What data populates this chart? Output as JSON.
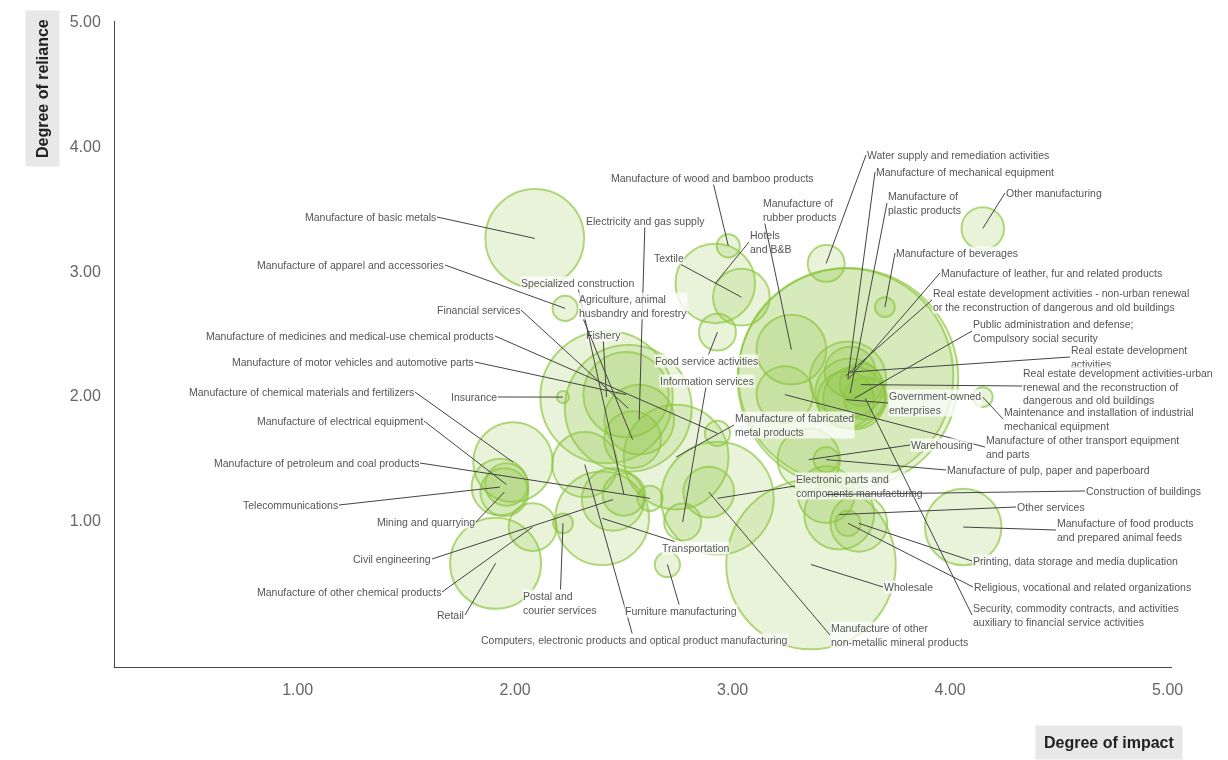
{
  "chart_data": {
    "type": "bubble",
    "xlabel": "Degree of impact",
    "ylabel": "Degree of reliance",
    "xlim": [
      0.16,
      5.02
    ],
    "ylim": [
      -0.17,
      5.0
    ],
    "xticks": [
      {
        "value": 1,
        "label": "1.00"
      },
      {
        "value": 2,
        "label": "2.00"
      },
      {
        "value": 3,
        "label": "3.00"
      },
      {
        "value": 4,
        "label": "4.00"
      },
      {
        "value": 5,
        "label": "5.00"
      }
    ],
    "yticks": [
      {
        "value": 1,
        "label": "1.00"
      },
      {
        "value": 2,
        "label": "2.00"
      },
      {
        "value": 3,
        "label": "3.00"
      },
      {
        "value": 4,
        "label": "4.00"
      },
      {
        "value": 5,
        "label": "5.00"
      }
    ],
    "color": "#8cc63f",
    "x": [
      2.09,
      2.23,
      2.52,
      2.93,
      2.51,
      1.99,
      2.22,
      1.96,
      2.62,
      1.93,
      1.95,
      2.45,
      2.08,
      1.91,
      2.22,
      2.32,
      2.7,
      2.4,
      2.42,
      2.5,
      2.57,
      2.54,
      2.98,
      3.04,
      2.92,
      2.93,
      2.77,
      2.74,
      2.93,
      2.89,
      3.27,
      3.43,
      3.53,
      3.54,
      4.15,
      3.7,
      3.53,
      3.52,
      3.56,
      3.54,
      3.59,
      3.52,
      4.15,
      3.24,
      3.35,
      3.43,
      3.43,
      3.49,
      4.06,
      3.58,
      3.53,
      3.36,
      3.61
    ],
    "values": [
      3.26,
      2.7,
      1.9,
      1.7,
      2.01,
      1.47,
      1.99,
      1.29,
      1.18,
      1.27,
      1.23,
      1.17,
      0.95,
      0.66,
      0.98,
      1.45,
      0.65,
      1.02,
      1.99,
      1.21,
      1.81,
      1.65,
      3.2,
      2.79,
      2.9,
      2.51,
      0.99,
      1.51,
      1.18,
      1.23,
      2.37,
      3.06,
      2.14,
      2.02,
      3.34,
      2.71,
      2.13,
      2.16,
      1.98,
      2.19,
      2.09,
      1.97,
      1.99,
      2.01,
      1.49,
      1.49,
      1.21,
      1.05,
      0.95,
      0.98,
      0.98,
      0.65,
      1.98
    ],
    "sizes": [
      0.2,
      0.013,
      0.33,
      0.013,
      0.15,
      0.13,
      0.003,
      0.037,
      0.013,
      0.066,
      0.047,
      0.08,
      0.047,
      0.17,
      0.008,
      0.087,
      0.013,
      0.18,
      0.36,
      0.037,
      0.1,
      0.066,
      0.011,
      0.066,
      0.13,
      0.028,
      0.028,
      0.225,
      0.26,
      0.053,
      0.1,
      0.028,
      1,
      0.1,
      0.037,
      0.008,
      0.12,
      0.95,
      0.08,
      0.053,
      0.037,
      0.066,
      0.008,
      0.066,
      0.08,
      0.013,
      0.066,
      0.1,
      0.12,
      0.066,
      0.013,
      0.59,
      0.037
    ],
    "annotations": [
      {
        "text": "Manufacture of basic metals",
        "x": 2.09,
        "y": 3.26
      },
      {
        "text": "Manufacture of apparel and accessories",
        "x": 2.23,
        "y": 2.7
      },
      {
        "text": "Financial services",
        "x": 2.52,
        "y": 1.9
      },
      {
        "text": "Manufacture of medicines and medical-use chemical products",
        "x": 2.93,
        "y": 1.7
      },
      {
        "text": "Manufacture of motor vehicles and automotive parts",
        "x": 2.51,
        "y": 2.01
      },
      {
        "text": "Manufacture of chemical materials and fertilizers",
        "x": 1.99,
        "y": 1.47
      },
      {
        "text": "Insurance",
        "x": 2.22,
        "y": 1.99
      },
      {
        "text": "Manufacture of electrical equipment",
        "x": 1.96,
        "y": 1.29
      },
      {
        "text": "Manufacture of petroleum and coal products",
        "x": 2.62,
        "y": 1.18
      },
      {
        "text": "Telecommunications",
        "x": 1.93,
        "y": 1.27
      },
      {
        "text": "Mining and quarrying",
        "x": 1.95,
        "y": 1.23
      },
      {
        "text": "Civil engineering",
        "x": 2.45,
        "y": 1.17
      },
      {
        "text": "Manufacture of other chemical products",
        "x": 2.08,
        "y": 0.95
      },
      {
        "text": "Retail",
        "x": 1.91,
        "y": 0.66
      },
      {
        "text": "Postal and courier services",
        "x": 2.22,
        "y": 0.98
      },
      {
        "text": "Computers, electronic products and optical product manufacturing",
        "x": 2.32,
        "y": 1.45
      },
      {
        "text": "Furniture manufacturing",
        "x": 2.7,
        "y": 0.65
      },
      {
        "text": "Transportation",
        "x": 2.4,
        "y": 1.02
      },
      {
        "text": "Fishery",
        "x": 2.42,
        "y": 1.99
      },
      {
        "text": "Specialized construction",
        "x": 2.5,
        "y": 1.21
      },
      {
        "text": "Electricity and gas supply",
        "x": 2.57,
        "y": 1.81
      },
      {
        "text": "Agriculture, animal husbandry and forestry",
        "x": 2.54,
        "y": 1.65
      },
      {
        "text": "Manufacture of wood and bamboo products",
        "x": 2.98,
        "y": 3.2
      },
      {
        "text": "Textile",
        "x": 3.04,
        "y": 2.79
      },
      {
        "text": "Hotels and B&B",
        "x": 2.92,
        "y": 2.9
      },
      {
        "text": "Food service activities",
        "x": 2.93,
        "y": 2.51
      },
      {
        "text": "Information services",
        "x": 2.77,
        "y": 0.99
      },
      {
        "text": "Manufacture of fabricated metal products",
        "x": 2.74,
        "y": 1.51
      },
      {
        "text": "Electronic parts and components manufacturing",
        "x": 2.93,
        "y": 1.18
      },
      {
        "text": "Manufacture of other non-metallic mineral products",
        "x": 2.89,
        "y": 1.23
      },
      {
        "text": "Manufacture of rubber products",
        "x": 3.27,
        "y": 2.37
      },
      {
        "text": "Water supply and remediation activities",
        "x": 3.43,
        "y": 3.06
      },
      {
        "text": "Manufacture of mechanical equipment",
        "x": 3.53,
        "y": 2.14
      },
      {
        "text": "Manufacture of plastic products",
        "x": 3.54,
        "y": 2.02
      },
      {
        "text": "Other manufacturing",
        "x": 4.15,
        "y": 3.34
      },
      {
        "text": "Manufacture of beverages",
        "x": 3.7,
        "y": 2.71
      },
      {
        "text": "Manufacture of leather, fur and related products",
        "x": 3.53,
        "y": 2.13
      },
      {
        "text": "Real estate development activities - non-urban renewal or the reconstruction of dangerous and old buildings",
        "x": 3.52,
        "y": 2.16
      },
      {
        "text": "Public administration and defense; Compulsory social security",
        "x": 3.56,
        "y": 1.98
      },
      {
        "text": "Real estate development activities",
        "x": 3.54,
        "y": 2.19
      },
      {
        "text": "Real estate development activities-urban renewal and the reconstruction of dangerous and old buildings",
        "x": 3.59,
        "y": 2.09
      },
      {
        "text": "Government-owned enterprises",
        "x": 3.52,
        "y": 1.97
      },
      {
        "text": "Maintenance and installation of industrial mechanical equipment",
        "x": 4.15,
        "y": 1.99
      },
      {
        "text": "Manufacture of other transport equipment and parts",
        "x": 3.24,
        "y": 2.01
      },
      {
        "text": "Warehousing",
        "x": 3.35,
        "y": 1.49
      },
      {
        "text": "Manufacture of pulp, paper and paperboard",
        "x": 3.43,
        "y": 1.49
      },
      {
        "text": "Construction of buildings",
        "x": 3.43,
        "y": 1.21
      },
      {
        "text": "Other services",
        "x": 3.49,
        "y": 1.05
      },
      {
        "text": "Manufacture of food products and prepared animal feeds",
        "x": 4.06,
        "y": 0.95
      },
      {
        "text": "Printing, data storage and media duplication",
        "x": 3.58,
        "y": 0.98
      },
      {
        "text": "Religious, vocational and related organizations",
        "x": 3.53,
        "y": 0.98
      },
      {
        "text": "Wholesale",
        "x": 3.36,
        "y": 0.65
      },
      {
        "text": "Security, commodity contracts, and activities auxiliary to financial service activities",
        "x": 3.61,
        "y": 1.98
      }
    ]
  }
}
